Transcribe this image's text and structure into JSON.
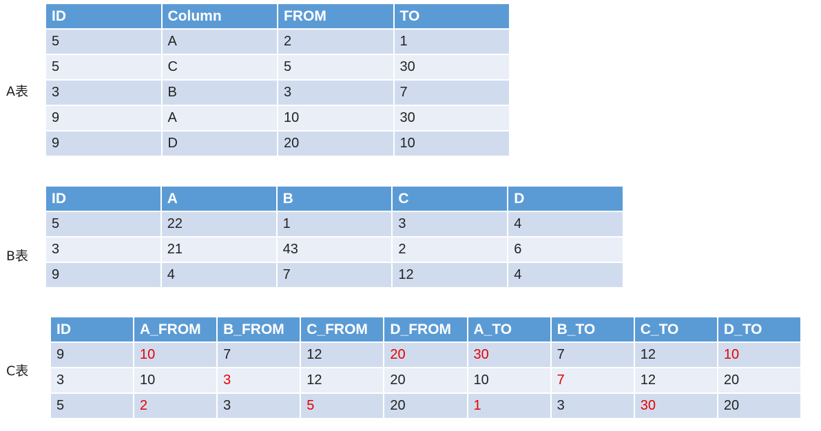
{
  "table_a": {
    "label": "A表",
    "headers": [
      "ID",
      "Column",
      "FROM",
      "TO"
    ],
    "rows": [
      [
        "5",
        "A",
        "2",
        "1"
      ],
      [
        "5",
        "C",
        "5",
        "30"
      ],
      [
        "3",
        "B",
        "3",
        "7"
      ],
      [
        "9",
        "A",
        "10",
        "30"
      ],
      [
        "9",
        "D",
        "20",
        "10"
      ]
    ]
  },
  "table_b": {
    "label": "B表",
    "headers": [
      "ID",
      "A",
      "B",
      "C",
      "D"
    ],
    "rows": [
      [
        "5",
        "22",
        "1",
        "3",
        "4"
      ],
      [
        "3",
        "21",
        "43",
        "2",
        "6"
      ],
      [
        "9",
        "4",
        "7",
        "12",
        "4"
      ]
    ]
  },
  "table_c": {
    "label": "C表",
    "highlight_color": "#e60000",
    "headers": [
      "ID",
      "A_FROM",
      "B_FROM",
      "C_FROM",
      "D_FROM",
      "A_TO",
      "B_TO",
      "C_TO",
      "D_TO"
    ],
    "rows": [
      [
        "9",
        "10",
        "7",
        "12",
        "20",
        "30",
        "7",
        "12",
        "10"
      ],
      [
        "3",
        "10",
        "3",
        "12",
        "20",
        "10",
        "7",
        "12",
        "20"
      ],
      [
        "5",
        "2",
        "3",
        "5",
        "20",
        "1",
        "3",
        "30",
        "20"
      ]
    ]
  }
}
